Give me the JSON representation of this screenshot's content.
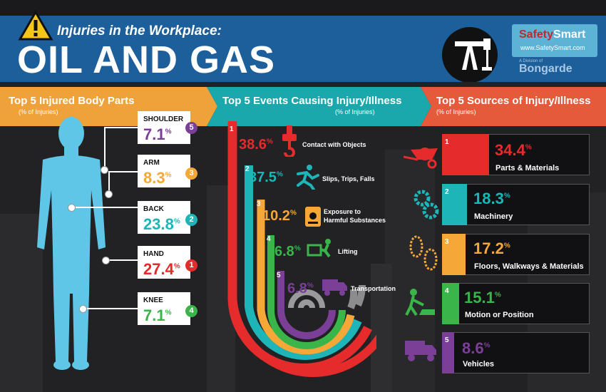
{
  "header": {
    "subtitle": "Injuries in the Workplace:",
    "title": "OIL AND GAS",
    "brand_name_a": "Safety",
    "brand_name_b": "Smart",
    "brand_url": "www.SafetySmart.com",
    "parent_small": "A Division of",
    "parent_name": "Bongarde"
  },
  "sections": {
    "body": {
      "title": "Top 5 Injured Body Parts",
      "sub": "(% of Injuries)"
    },
    "events": {
      "title": "Top 5 Events Causing Injury/Illness",
      "sub": "(% of Injuries)"
    },
    "sources": {
      "title": "Top 5 Sources of Injury/Illness",
      "sub": "(% of Injuries)"
    }
  },
  "colors": {
    "red": "#e52b2b",
    "teal": "#1db5b8",
    "orange": "#f5a838",
    "green": "#3ab54a",
    "purple": "#7b3f98",
    "orange_head": "#f0a23a",
    "teal_head": "#1ba8ac",
    "red_head": "#e55a3a"
  },
  "body_parts": [
    {
      "name": "SHOULDER",
      "value": "7.1",
      "rank": "5",
      "color": "#7b3f98"
    },
    {
      "name": "ARM",
      "value": "8.3",
      "rank": "3",
      "color": "#f5a838"
    },
    {
      "name": "BACK",
      "value": "23.8",
      "rank": "2",
      "color": "#1db5b8"
    },
    {
      "name": "HAND",
      "value": "27.4",
      "rank": "1",
      "color": "#e52b2b"
    },
    {
      "name": "KNEE",
      "value": "7.1",
      "rank": "4",
      "color": "#3ab54a"
    }
  ],
  "events": [
    {
      "rank": "1",
      "value": "38.6",
      "label": "Contact with Objects",
      "color": "#e52b2b",
      "icon": "crane-hook-icon"
    },
    {
      "rank": "2",
      "value": "37.5",
      "label": "Slips, Trips, Falls",
      "color": "#1db5b8",
      "icon": "falling-person-icon"
    },
    {
      "rank": "3",
      "value": "10.2",
      "label_a": "Exposure to",
      "label_b": "Harmful Substances",
      "color": "#f5a838",
      "icon": "hazard-barrel-icon"
    },
    {
      "rank": "4",
      "value": "6.8",
      "label": "Lifting",
      "color": "#3ab54a",
      "icon": "lifting-box-icon"
    },
    {
      "rank": "5",
      "value": "6.8",
      "label": "Transportation",
      "color": "#7b3f98",
      "icon": "truck-icon"
    }
  ],
  "sources": [
    {
      "rank": "1",
      "value": "34.4",
      "label": "Parts & Materials",
      "color": "#e52b2b",
      "icon": "wheelbarrow-icon"
    },
    {
      "rank": "2",
      "value": "18.3",
      "label": "Machinery",
      "color": "#1db5b8",
      "icon": "gears-icon"
    },
    {
      "rank": "3",
      "value": "17.2",
      "label": "Floors, Walkways & Materials",
      "color": "#f5a838",
      "icon": "footprints-icon"
    },
    {
      "rank": "4",
      "value": "15.1",
      "label": "Motion or Position",
      "color": "#3ab54a",
      "icon": "digging-worker-icon"
    },
    {
      "rank": "5",
      "value": "8.6",
      "label": "Vehicles",
      "color": "#7b3f98",
      "icon": "truck-icon"
    }
  ],
  "percent": "%"
}
